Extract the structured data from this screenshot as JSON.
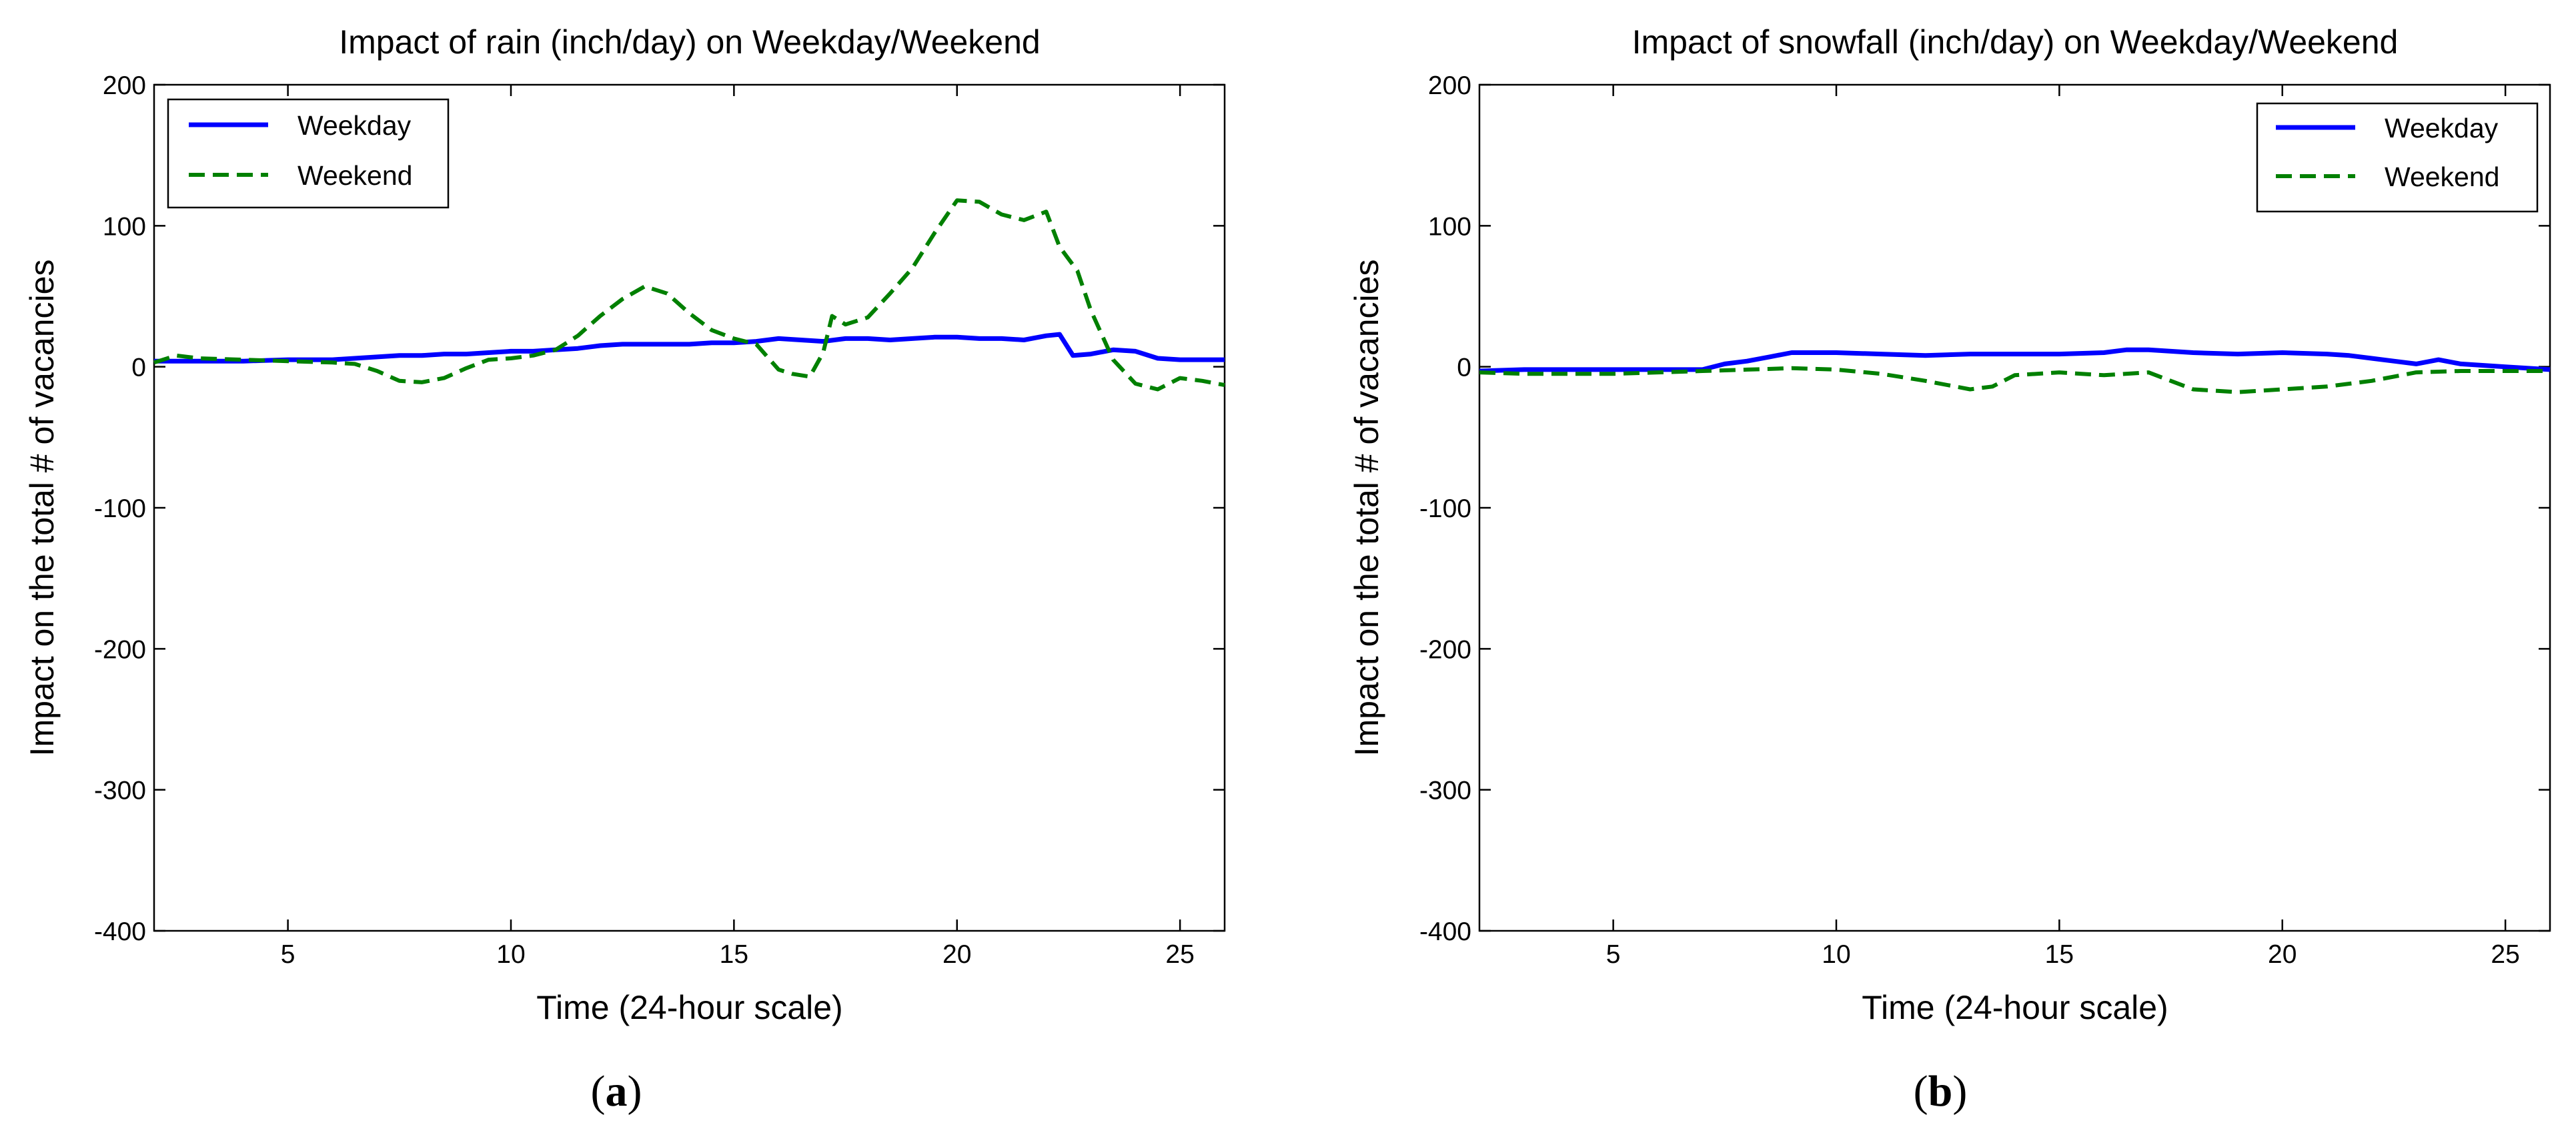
{
  "chart_data": [
    {
      "type": "line",
      "title": "Impact of rain (inch/day) on Weekday/Weekend",
      "xlabel": "Time (24-hour scale)",
      "ylabel": "Impact on the total # of vacancies",
      "xlim": [
        2,
        26
      ],
      "ylim": [
        -400,
        200
      ],
      "xticks": [
        5,
        10,
        15,
        20,
        25
      ],
      "yticks": [
        -400,
        -300,
        -200,
        -100,
        0,
        100,
        200
      ],
      "grid": false,
      "legend_position": "top-left",
      "caption_open": "(",
      "caption_letter": "a",
      "caption_close": ")",
      "series": [
        {
          "name": "Weekday",
          "color": "#0000ff",
          "style": "solid",
          "x": [
            2,
            3,
            4,
            5,
            6,
            6.5,
            7,
            7.5,
            8,
            8.5,
            9,
            9.5,
            10,
            10.5,
            11,
            11.5,
            12,
            12.5,
            13,
            13.5,
            14,
            14.5,
            15,
            15.5,
            16,
            16.5,
            17,
            17.5,
            18,
            18.5,
            19,
            19.5,
            20,
            20.5,
            21,
            21.5,
            22,
            22.3,
            22.6,
            23,
            23.5,
            24,
            24.5,
            25,
            26
          ],
          "y": [
            4,
            4,
            4,
            5,
            5,
            6,
            7,
            8,
            8,
            9,
            9,
            10,
            11,
            11,
            12,
            13,
            15,
            16,
            16,
            16,
            16,
            17,
            17,
            18,
            20,
            19,
            18,
            20,
            20,
            19,
            20,
            21,
            21,
            20,
            20,
            19,
            22,
            23,
            8,
            9,
            12,
            11,
            6,
            5,
            5
          ]
        },
        {
          "name": "Weekend",
          "color": "#008000",
          "style": "dashed",
          "x": [
            2,
            2.5,
            3,
            4,
            5,
            6,
            6.5,
            7,
            7.5,
            8,
            8.5,
            9,
            9.5,
            10,
            10.5,
            11,
            11.5,
            12,
            12.5,
            13,
            13.5,
            14,
            14.5,
            15,
            15.5,
            16,
            16.3,
            16.7,
            17,
            17.2,
            17.5,
            18,
            18.5,
            19,
            19.5,
            20,
            20.5,
            21,
            21.5,
            22,
            22.3,
            22.7,
            23,
            23.5,
            24,
            24.5,
            25,
            25.5,
            26
          ],
          "y": [
            3,
            8,
            6,
            5,
            4,
            3,
            2,
            -3,
            -10,
            -11,
            -8,
            -1,
            5,
            6,
            8,
            12,
            22,
            36,
            48,
            57,
            52,
            38,
            26,
            20,
            16,
            -2,
            -5,
            -7,
            10,
            36,
            30,
            35,
            52,
            70,
            95,
            118,
            117,
            108,
            104,
            110,
            85,
            68,
            40,
            5,
            -12,
            -16,
            -8,
            -10,
            -13
          ]
        }
      ]
    },
    {
      "type": "line",
      "title": "Impact of snowfall (inch/day) on Weekday/Weekend",
      "xlabel": "Time (24-hour scale)",
      "ylabel": "Impact on the total # of vacancies",
      "xlim": [
        2,
        26
      ],
      "ylim": [
        -400,
        200
      ],
      "xticks": [
        5,
        10,
        15,
        20,
        25
      ],
      "yticks": [
        -400,
        -300,
        -200,
        -100,
        0,
        100,
        200
      ],
      "grid": false,
      "legend_position": "top-right",
      "caption_open": "(",
      "caption_letter": "b",
      "caption_close": ")",
      "series": [
        {
          "name": "Weekday",
          "color": "#0000ff",
          "style": "solid",
          "x": [
            2,
            3,
            4,
            5,
            6,
            7,
            7.5,
            8,
            8.5,
            9,
            10,
            11,
            12,
            13,
            14,
            15,
            16,
            16.5,
            17,
            17.5,
            18,
            19,
            20,
            21,
            21.5,
            22,
            22.5,
            23,
            23.5,
            24,
            25,
            26
          ],
          "y": [
            -3,
            -2,
            -2,
            -2,
            -2,
            -2,
            2,
            4,
            7,
            10,
            10,
            9,
            8,
            9,
            9,
            9,
            10,
            12,
            12,
            11,
            10,
            9,
            10,
            9,
            8,
            6,
            4,
            2,
            5,
            2,
            0,
            -2
          ]
        },
        {
          "name": "Weekend",
          "color": "#008000",
          "style": "dashed",
          "x": [
            2,
            3,
            4,
            5,
            6,
            7,
            8,
            9,
            10,
            11,
            12,
            13,
            13.5,
            14,
            15,
            16,
            17,
            18,
            19,
            20,
            21,
            22,
            23,
            24,
            25,
            26
          ],
          "y": [
            -4,
            -5,
            -5,
            -5,
            -4,
            -3,
            -2,
            -1,
            -2,
            -5,
            -10,
            -16,
            -14,
            -6,
            -4,
            -6,
            -4,
            -16,
            -18,
            -16,
            -14,
            -10,
            -4,
            -3,
            -3,
            -3
          ]
        }
      ]
    }
  ]
}
